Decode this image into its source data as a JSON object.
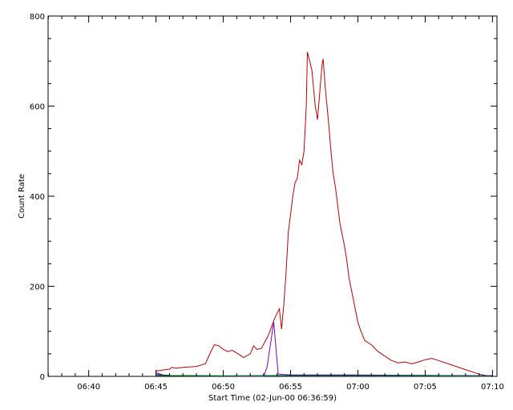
{
  "chart_data": {
    "type": "line",
    "title": "",
    "xlabel": "Start Time (02-Jun-00 06:36:59)",
    "ylabel": "Count Rate",
    "x_unit": "time (HH:MM, 02-Jun-00)",
    "xlim": [
      "06:36:59",
      "07:10:20"
    ],
    "ylim": [
      0,
      800
    ],
    "x_ticks": [
      "06:40",
      "06:45",
      "06:50",
      "06:55",
      "07:00",
      "07:05",
      "07:10"
    ],
    "y_ticks": [
      0,
      200,
      400,
      600,
      800
    ],
    "grid": false,
    "legend": "none",
    "series": [
      {
        "color": "#c00000",
        "points": [
          [
            "06:45:00",
            12
          ],
          [
            "06:45:30",
            14
          ],
          [
            "06:46:00",
            16
          ],
          [
            "06:46:10",
            20
          ],
          [
            "06:46:30",
            18
          ],
          [
            "06:47:00",
            20
          ],
          [
            "06:48:00",
            22
          ],
          [
            "06:48:40",
            28
          ],
          [
            "06:49:00",
            50
          ],
          [
            "06:49:20",
            70
          ],
          [
            "06:49:40",
            68
          ],
          [
            "06:50:00",
            60
          ],
          [
            "06:50:20",
            55
          ],
          [
            "06:50:40",
            58
          ],
          [
            "06:51:00",
            52
          ],
          [
            "06:51:30",
            42
          ],
          [
            "06:52:00",
            50
          ],
          [
            "06:52:15",
            68
          ],
          [
            "06:52:30",
            60
          ],
          [
            "06:52:50",
            62
          ],
          [
            "06:53:20",
            90
          ],
          [
            "06:53:50",
            130
          ],
          [
            "06:54:10",
            150
          ],
          [
            "06:54:20",
            105
          ],
          [
            "06:54:30",
            160
          ],
          [
            "06:54:40",
            230
          ],
          [
            "06:54:50",
            320
          ],
          [
            "06:55:00",
            360
          ],
          [
            "06:55:10",
            400
          ],
          [
            "06:55:20",
            430
          ],
          [
            "06:55:30",
            440
          ],
          [
            "06:55:40",
            480
          ],
          [
            "06:55:50",
            470
          ],
          [
            "06:56:00",
            500
          ],
          [
            "06:56:10",
            600
          ],
          [
            "06:56:15",
            720
          ],
          [
            "06:56:25",
            700
          ],
          [
            "06:56:35",
            680
          ],
          [
            "06:56:50",
            600
          ],
          [
            "06:57:00",
            570
          ],
          [
            "06:57:10",
            630
          ],
          [
            "06:57:20",
            690
          ],
          [
            "06:57:25",
            705
          ],
          [
            "06:57:35",
            640
          ],
          [
            "06:57:50",
            560
          ],
          [
            "06:58:00",
            500
          ],
          [
            "06:58:10",
            450
          ],
          [
            "06:58:20",
            420
          ],
          [
            "06:58:40",
            340
          ],
          [
            "06:59:00",
            290
          ],
          [
            "06:59:10",
            260
          ],
          [
            "06:59:20",
            220
          ],
          [
            "06:59:40",
            170
          ],
          [
            "07:00:00",
            120
          ],
          [
            "07:00:10",
            105
          ],
          [
            "07:00:30",
            80
          ],
          [
            "07:01:00",
            70
          ],
          [
            "07:01:30",
            55
          ],
          [
            "07:02:00",
            45
          ],
          [
            "07:02:30",
            35
          ],
          [
            "07:03:00",
            30
          ],
          [
            "07:03:30",
            32
          ],
          [
            "07:04:00",
            28
          ],
          [
            "07:04:30",
            32
          ],
          [
            "07:05:00",
            37
          ],
          [
            "07:05:30",
            40
          ],
          [
            "07:06:00",
            35
          ],
          [
            "07:07:00",
            25
          ],
          [
            "07:08:00",
            15
          ],
          [
            "07:09:00",
            5
          ],
          [
            "07:09:30",
            2
          ],
          [
            "07:10:00",
            1
          ]
        ]
      },
      {
        "color": "#7b00b4",
        "points": [
          [
            "06:45:00",
            4
          ],
          [
            "06:46:00",
            2
          ],
          [
            "06:53:00",
            0
          ],
          [
            "06:53:15",
            20
          ],
          [
            "06:53:45",
            120
          ],
          [
            "06:54:05",
            5
          ],
          [
            "06:55:00",
            3
          ],
          [
            "07:00:00",
            3
          ],
          [
            "07:05:00",
            2
          ],
          [
            "07:10:00",
            1
          ]
        ]
      },
      {
        "color": "#0000cc",
        "points": [
          [
            "06:45:00",
            8
          ],
          [
            "06:45:30",
            3
          ],
          [
            "06:46:00",
            2
          ],
          [
            "06:50:00",
            1
          ],
          [
            "06:55:00",
            2
          ],
          [
            "07:00:00",
            2
          ],
          [
            "07:05:00",
            2
          ],
          [
            "07:10:00",
            1
          ]
        ]
      },
      {
        "color": "#008000",
        "points": [
          [
            "06:45:00",
            2
          ],
          [
            "06:50:00",
            1
          ],
          [
            "06:55:00",
            1
          ],
          [
            "07:00:00",
            1
          ],
          [
            "07:05:00",
            1
          ],
          [
            "07:10:00",
            0
          ]
        ]
      }
    ]
  }
}
